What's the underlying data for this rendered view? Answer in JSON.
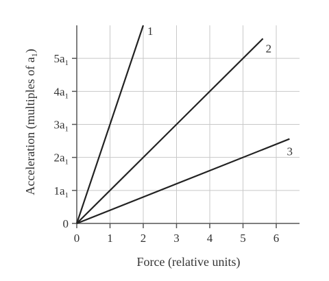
{
  "chart_data": {
    "type": "line",
    "title": "",
    "xlabel": "Force (relative units)",
    "ylabel": "Acceleration (multiples of a",
    "ylabel_subscript": "1",
    "ylabel_suffix": ")",
    "xlim": [
      0,
      6.7
    ],
    "ylim": [
      0,
      6.0
    ],
    "grid": true,
    "x_ticks": [
      0,
      1,
      2,
      3,
      4,
      5,
      6
    ],
    "x_tick_labels": [
      "0",
      "1",
      "2",
      "3",
      "4",
      "5",
      "6"
    ],
    "y_ticks": [
      0,
      1,
      2,
      3,
      4,
      5
    ],
    "y_tick_labels": [
      {
        "main": "0",
        "sub": ""
      },
      {
        "main": "1a",
        "sub": "1"
      },
      {
        "main": "2a",
        "sub": "1"
      },
      {
        "main": "3a",
        "sub": "1"
      },
      {
        "main": "4a",
        "sub": "1"
      },
      {
        "main": "5a",
        "sub": "1"
      }
    ],
    "series": [
      {
        "label": "1",
        "x": [
          0,
          2.0
        ],
        "y": [
          0,
          6.0
        ]
      },
      {
        "label": "2",
        "x": [
          0,
          5.6
        ],
        "y": [
          0,
          5.6
        ]
      },
      {
        "label": "3",
        "x": [
          0,
          6.4
        ],
        "y": [
          0,
          2.56
        ]
      }
    ]
  }
}
